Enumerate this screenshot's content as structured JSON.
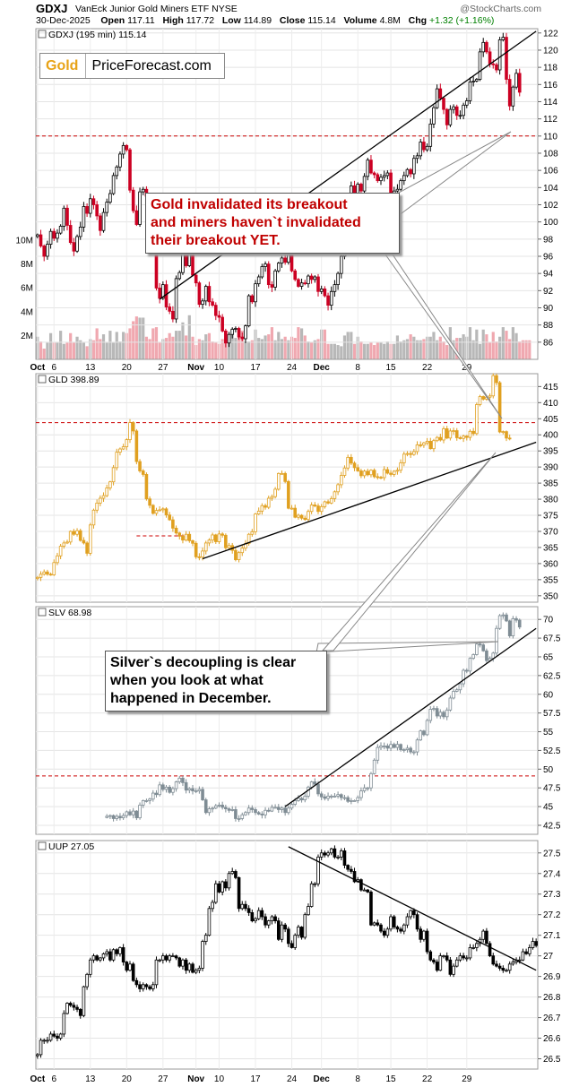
{
  "header": {
    "symbol": "GDXJ",
    "name": "VanEck Junior Gold Miners ETF  NYSE",
    "brand": "@StockCharts.com",
    "date": "30-Dec-2025",
    "open_label": "Open",
    "open": "117.11",
    "high_label": "High",
    "high": "117.72",
    "low_label": "Low",
    "low": "114.89",
    "close_label": "Close",
    "close": "115.14",
    "volume_label": "Volume",
    "volume": "4.8M",
    "chg_label": "Chg",
    "chg": "+1.32 (+1.16%)"
  },
  "logo": {
    "gold": "Gold",
    "site": "PriceForecast.com"
  },
  "annotations": {
    "gold_note": [
      "Gold invalidated its breakout",
      "and miners haven`t invalidated",
      "their breakout YET."
    ],
    "silver_note": [
      "Silver`s decoupling is clear",
      "when you look at what",
      "happened in December."
    ]
  },
  "x_axis": {
    "labels": [
      "Oct",
      "6",
      "13",
      "20",
      "27",
      "Nov",
      "10",
      "17",
      "24",
      "Dec",
      "8",
      "15",
      "22",
      "29"
    ],
    "bold": [
      "Oct",
      "Nov",
      "Dec"
    ]
  },
  "colors": {
    "up_gdxj": "#000000",
    "down_gdxj": "#cc0022",
    "gld": "#e0a020",
    "slv": "#7f8c94",
    "uup": "#000000",
    "vol_up": "#b8b8b8",
    "vol_down": "#f0a8b0",
    "resistance": "#cc0000"
  },
  "chart_data": [
    {
      "type": "candlestick",
      "label": "GDXJ (195 min) 115.14",
      "ylim": [
        84,
        122.5
      ],
      "yticks": [
        86,
        88,
        90,
        92,
        94,
        96,
        98,
        100,
        102,
        104,
        106,
        108,
        110,
        112,
        114,
        116,
        118,
        120,
        122
      ],
      "closes": [
        98.5,
        97.2,
        96,
        97.4,
        98.9,
        98.1,
        98.7,
        99.5,
        101.6,
        99.6,
        97.6,
        96.6,
        98.3,
        99.4,
        101.8,
        101,
        102.7,
        102,
        100.7,
        99,
        101.1,
        102.3,
        103.3,
        105.4,
        106.4,
        107.9,
        108.9,
        108.4,
        103.7,
        101.3,
        99.7,
        103.5,
        103.8,
        103,
        100.2,
        97.7,
        92.3,
        91.1,
        92.7,
        90.1,
        89.6,
        88.7,
        93.4,
        94.1,
        96.4,
        94.9,
        96.2,
        93.8,
        92.9,
        90.4,
        90.8,
        92.5,
        90.7,
        90.3,
        89.1,
        88.9,
        87.3,
        85.9,
        86.9,
        87.5,
        87.6,
        86.6,
        86.4,
        87.9,
        91.4,
        90.7,
        92.8,
        93.6,
        94.8,
        95.1,
        92.7,
        92.4,
        94.3,
        95.2,
        95.8,
        95.3,
        96.2,
        94.3,
        93.3,
        92.5,
        92.9,
        92.8,
        93.7,
        93.3,
        93.6,
        91.9,
        92.2,
        91.4,
        90.3,
        91.9,
        92.7,
        94,
        96,
        97.9,
        101.2,
        104.2,
        102,
        104.4,
        103.6,
        105.3,
        107.2,
        105.7,
        105.5,
        104.8,
        105.2,
        105.4,
        105.7,
        102.3,
        103.6,
        103.8,
        104.8,
        105.4,
        106.1,
        105.6,
        107.4,
        107.7,
        109.3,
        108.4,
        108.8,
        111.4,
        113.3,
        115.5,
        114.4,
        113.1,
        111.3,
        113.1,
        113.4,
        112.4,
        112.4,
        113.6,
        114.1,
        116.3,
        116.4,
        116.6,
        119.8,
        120.9,
        119.8,
        118.4,
        118.3,
        117.7,
        121.2,
        121.5,
        116.6,
        113.5,
        115.7,
        117.3,
        115.1
      ],
      "x_label_indices": [
        0,
        5,
        16,
        27,
        38,
        48,
        55,
        66,
        77,
        86,
        97,
        107,
        118,
        130
      ],
      "volume_m": [
        1.9,
        1.5,
        0.9,
        1.4,
        2.2,
        1.4,
        1.4,
        2.4,
        1.3,
        1.4,
        2.2,
        1.4,
        1.9,
        1.6,
        1.4,
        1.1,
        1.7,
        1.6,
        2.6,
        1.7,
        2.1,
        1.4,
        2.4,
        1.4,
        2.3,
        1.5,
        2.3,
        2.2,
        2.6,
        3.2,
        3.6,
        3.5,
        3.5,
        1.9,
        1.7,
        2.6,
        2.7,
        1.4,
        1.7,
        1.8,
        2.2,
        1.9,
        2.4,
        2.4,
        3.1,
        2,
        3.7,
        1.9,
        1.2,
        1.7,
        1.6,
        2.1,
        2.2,
        1.5,
        1.4,
        1.3,
        1.7,
        1.7,
        1.9,
        2.6,
        1.8,
        2.6,
        2.4,
        1.5,
        1.5,
        1.6,
        2.5,
        1.8,
        1.7,
        2,
        2.1,
        2.7,
        1.6,
        2.3,
        1.7,
        1.9,
        1.6,
        1.9,
        1.8,
        2.7,
        2.6,
        2,
        1.5,
        1.4,
        1.6,
        1.7,
        2.5,
        2.5,
        1.3,
        1.3,
        1.3,
        1.2,
        1.1,
        2,
        2.3,
        2.3,
        1.3,
        1.9,
        1.5,
        1.3,
        1.3,
        1.4,
        1.2,
        1.4,
        1.4,
        1.3,
        1.5,
        1.3,
        1.3,
        2,
        1.5,
        1.6,
        1.7,
        2.1,
        1.9,
        1.6,
        1.6,
        1.7,
        1.9,
        1.9,
        2.3,
        1.6,
        1.9,
        1.5,
        1.2,
        2.7,
        1.6,
        1.8,
        1.8,
        2.1,
        1.9,
        2.7,
        1.6,
        2.5,
        1.3,
        2.5,
        2.1,
        1.4,
        2.3,
        1.5,
        1.9,
        2.7,
        2.4,
        1.7,
        2.7,
        2.2,
        1.5,
        1.6,
        1.6,
        1.6
      ],
      "volume_ticks": [
        "2M",
        "4M",
        "6M",
        "8M",
        "10M"
      ],
      "resistance": 110,
      "trendline": [
        [
          37,
          91
        ],
        [
          151,
          122.2
        ]
      ]
    },
    {
      "type": "candlestick",
      "label": "GLD 398.89",
      "ylim": [
        348,
        419
      ],
      "yticks": [
        350,
        355,
        360,
        365,
        370,
        375,
        380,
        385,
        390,
        395,
        400,
        405,
        410,
        415
      ],
      "closes": [
        355.7,
        356.7,
        357.4,
        356.7,
        356.5,
        360.3,
        362.4,
        365.4,
        366.4,
        366.7,
        370,
        369.1,
        370.2,
        367.2,
        366.4,
        363.2,
        372,
        376.6,
        378.8,
        380.3,
        381.1,
        383.5,
        385.4,
        389.8,
        394.6,
        395.6,
        396.3,
        398.5,
        403.8,
        401.2,
        391.7,
        388.8,
        387.7,
        380.1,
        378.1,
        375.6,
        376.5,
        376.7,
        377,
        375.1,
        373.6,
        371,
        369.5,
        368.5,
        367.3,
        369.1,
        367.1,
        366.3,
        362.1,
        362,
        363.9,
        366.4,
        367.3,
        368.9,
        366.8,
        369.2,
        368.8,
        364.9,
        365.6,
        364.1,
        361.2,
        363.4,
        364.8,
        366.2,
        369.1,
        369.9,
        375.4,
        376.3,
        378,
        377.5,
        380.3,
        380.8,
        383.1,
        388,
        388,
        385.5,
        377.2,
        377.2,
        374.4,
        375,
        374.1,
        373.7,
        376.2,
        378.2,
        377.9,
        376.2,
        377.7,
        379.2,
        378.8,
        380.2,
        382.3,
        384.5,
        387.4,
        389.7,
        393,
        391.2,
        389.8,
        388.8,
        387.3,
        388.7,
        387.6,
        389,
        387,
        386.8,
        386.7,
        389.2,
        388.1,
        387.7,
        388.7,
        389,
        391.3,
        394,
        394.2,
        393.9,
        394.8,
        396.9,
        396.8,
        397.5,
        398,
        395.7,
        398.2,
        399.2,
        398.4,
        401.9,
        399,
        401.2,
        401.3,
        399.1,
        398.9,
        399.6,
        399.2,
        401.1,
        400.4,
        409.4,
        411.9,
        411.1,
        411.7,
        412.1,
        418.4,
        416.2,
        400.9,
        401,
        399,
        398.89
      ],
      "resistance": 403.8,
      "support_dash": [
        [
          30,
          368.6
        ],
        [
          47,
          368.6
        ]
      ],
      "trendline": [
        [
          50,
          361.5
        ],
        [
          151,
          397.7
        ]
      ]
    },
    {
      "type": "candlestick",
      "label": "SLV 68.98",
      "ylim": [
        41.3,
        71.7
      ],
      "yticks": [
        42.5,
        45,
        47.5,
        50,
        52.5,
        55,
        57.5,
        60,
        62.5,
        65,
        67.5,
        70
      ],
      "closes": [
        43.7,
        43.8,
        43.4,
        43.7,
        43.5,
        43.8,
        44.3,
        43.9,
        44.4,
        43.5,
        45.2,
        45.8,
        45.8,
        46,
        46.8,
        46.6,
        47.9,
        47.3,
        47.6,
        46.9,
        47.4,
        48.3,
        48.8,
        48.2,
        47.2,
        47.4,
        47.1,
        47.1,
        47.3,
        45.9,
        44.2,
        44.7,
        44.8,
        45.1,
        45.2,
        44.9,
        44.7,
        44.5,
        44.6,
        43.4,
        43.4,
        43.9,
        44.2,
        44.8,
        44.6,
        44.2,
        44,
        43.9,
        44.5,
        44.4,
        44.9,
        44.9,
        44.6,
        44.8,
        44.2,
        44.8,
        45.3,
        45.8,
        46.1,
        45.9,
        46.4,
        47.6,
        48.3,
        48,
        46.7,
        46.3,
        46.1,
        46.4,
        46.4,
        46.4,
        46.6,
        46.2,
        46.2,
        45.7,
        45.8,
        45.8,
        46.2,
        47.1,
        47.5,
        47.5,
        49.4,
        51.2,
        52.9,
        53.1,
        53.1,
        52.8,
        53.3,
        52.9,
        53.3,
        52.6,
        52.6,
        52.8,
        52.3,
        52.3,
        53.9,
        55.1,
        54.6,
        56.5,
        58,
        58.1,
        57.1,
        57.6,
        57,
        57.9,
        59.5,
        60.4,
        60.6,
        61.4,
        63.2,
        63.1,
        64.8,
        65.3,
        66.7,
        66.6,
        65.8,
        64.5,
        64.8,
        65.5,
        68.8,
        70.5,
        70.6,
        69.8,
        67.8,
        70.1,
        69.9,
        68.98
      ],
      "x_start_index": 21,
      "resistance": 49.1,
      "trendline": [
        [
          75,
          45
        ],
        [
          151,
          68.8
        ]
      ]
    },
    {
      "type": "candlestick",
      "label": "UUP 27.05",
      "ylim": [
        26.45,
        27.56
      ],
      "yticks": [
        26.5,
        26.6,
        26.7,
        26.8,
        26.9,
        27,
        27.1,
        27.2,
        27.3,
        27.4,
        27.5
      ],
      "closes": [
        26.52,
        26.59,
        26.59,
        26.59,
        26.62,
        26.61,
        26.6,
        26.62,
        26.72,
        26.77,
        26.76,
        26.75,
        26.74,
        26.71,
        26.85,
        26.91,
        26.98,
        27,
        26.98,
        26.99,
        27.01,
        27.02,
        26.98,
        27.03,
        27.01,
        27.04,
        26.97,
        26.93,
        26.96,
        26.88,
        26.86,
        26.84,
        26.86,
        26.85,
        26.84,
        26.86,
        26.98,
        26.98,
        27,
        26.98,
        27,
        27,
        26.99,
        26.95,
        26.98,
        26.93,
        26.96,
        26.92,
        26.93,
        26.94,
        27.07,
        27.1,
        27.23,
        27.26,
        27.35,
        27.31,
        27.36,
        27.33,
        27.4,
        27.41,
        27.38,
        27.23,
        27.25,
        27.23,
        27.21,
        27.17,
        27.18,
        27.22,
        27.19,
        27.15,
        27.17,
        27.19,
        27.17,
        27.08,
        27.15,
        27.13,
        27.06,
        27.04,
        27.1,
        27.14,
        27.09,
        27.2,
        27.24,
        27.35,
        27.35,
        27.48,
        27.5,
        27.49,
        27.5,
        27.52,
        27.48,
        27.48,
        27.51,
        27.44,
        27.42,
        27.41,
        27.36,
        27.37,
        27.32,
        27.32,
        27.31,
        27.15,
        27.16,
        27.15,
        27.12,
        27.1,
        27.13,
        27.19,
        27.14,
        27.13,
        27.12,
        27.15,
        27.19,
        27.22,
        27.2,
        27.13,
        27.08,
        27.12,
        27.02,
        26.98,
        26.97,
        26.93,
        27,
        27,
        26.98,
        26.91,
        26.95,
        26.98,
        27,
        26.99,
        26.99,
        27.04,
        27.04,
        27.06,
        27.08,
        27.12,
        27.06,
        27,
        26.96,
        26.95,
        26.94,
        26.93,
        26.93,
        26.96,
        26.97,
        26.98,
        26.98,
        27.02,
        27.01,
        27.04,
        27.07,
        27.05
      ],
      "trendline": [
        [
          76,
          27.53
        ],
        [
          151,
          26.93
        ]
      ]
    }
  ]
}
